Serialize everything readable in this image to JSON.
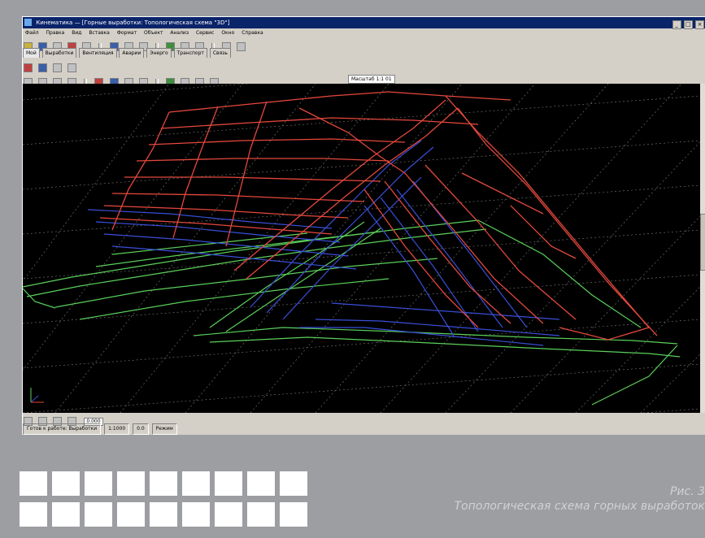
{
  "window": {
    "title": "Кинематика — [Горные выработки: Топологическая схема \"3D\"]",
    "buttons": [
      "_",
      "□",
      "×"
    ]
  },
  "menu": {
    "items": [
      "Файл",
      "Правка",
      "Вид",
      "Вставка",
      "Формат",
      "Объект",
      "Анализ",
      "Сервис",
      "Окно",
      "Справка"
    ]
  },
  "tabs": {
    "items": [
      "Мой",
      "Выработки",
      "Вентиляция",
      "Аварии",
      "Энерго",
      "Транспорт",
      "Связь"
    ]
  },
  "view": {
    "scale_label": "Масштаб",
    "scale_value": "1:1",
    "layer_value": "01"
  },
  "bottom": {
    "field_value": "0.000"
  },
  "status": {
    "panels": [
      "Готов к работе: Выработки",
      "1:1000",
      "0.0",
      "Режим"
    ]
  },
  "colors": {
    "viewport_bg": "#000000",
    "grid": "#8a8a8a",
    "red_level": "#e5483c",
    "blue_level": "#3a4fd8",
    "green_level": "#5ad05a",
    "page_bg": "#9c9ea1"
  },
  "caption": {
    "figure": "Рис. 3",
    "text": "Топологическая схема горных выработок"
  },
  "icons": [
    "new-icon",
    "open-icon",
    "save-icon",
    "print-icon",
    "zoom-icon",
    "rotate-icon",
    "grid-icon",
    "layer-icon"
  ]
}
